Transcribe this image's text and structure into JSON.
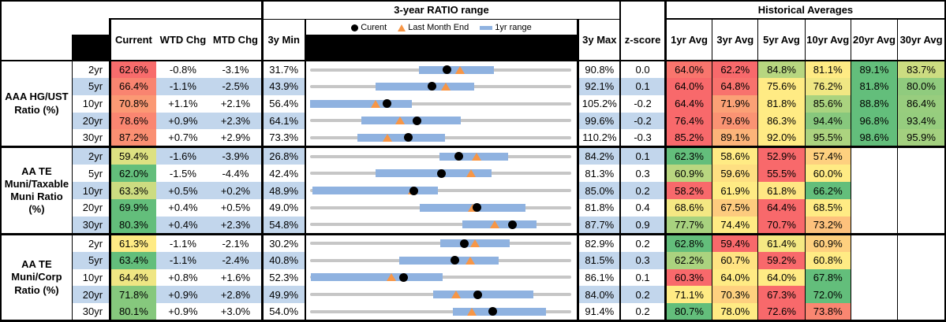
{
  "palette": {
    "scale_min_red": "#F8696B",
    "scale_mid_yellow": "#FFEB84",
    "scale_max_green": "#63BE7B",
    "stripe_blue": "#C2D6EC",
    "bar_blue": "#8FB2E0",
    "track_gray": "#C6C6C6",
    "marker_black": "#000000",
    "marker_orange": "#F79646"
  },
  "headers": {
    "range_title": "3-year RATIO range",
    "hist_title": "Historical Averages",
    "current": "Current",
    "wtd": "WTD Chg",
    "mtd": "MTD Chg",
    "min3y": "3y Min",
    "max3y": "3y Max",
    "zscore": "z-score",
    "avg": [
      "1yr Avg",
      "3yr Avg",
      "5yr Avg",
      "10yr Avg",
      "20yr Avg",
      "30yr Avg"
    ]
  },
  "legend": {
    "items": [
      {
        "marker": "black-dot",
        "label": "Curent"
      },
      {
        "marker": "orange-triangle",
        "label": "Last Month End"
      },
      {
        "marker": "blue-dash",
        "label": "1yr range"
      }
    ]
  },
  "sections": [
    {
      "label": "AAA HG/UST\nRatio (%)",
      "rows": [
        {
          "tenor": "2yr",
          "current": "62.6%",
          "wtd": "-0.8%",
          "mtd": "-3.1%",
          "min": "31.7%",
          "max": "90.8%",
          "z": "0.0",
          "avgs": [
            "64.0%",
            "62.2%",
            "84.8%",
            "81.1%",
            "89.1%",
            "83.7%"
          ]
        },
        {
          "tenor": "5yr",
          "current": "66.4%",
          "wtd": "-1.1%",
          "mtd": "-2.5%",
          "min": "43.9%",
          "max": "92.1%",
          "z": "0.1",
          "avgs": [
            "64.0%",
            "64.8%",
            "75.6%",
            "76.2%",
            "81.8%",
            "80.0%"
          ]
        },
        {
          "tenor": "10yr",
          "current": "70.8%",
          "wtd": "+1.1%",
          "mtd": "+2.1%",
          "min": "56.4%",
          "max": "105.2%",
          "z": "-0.2",
          "avgs": [
            "64.4%",
            "71.9%",
            "81.8%",
            "85.6%",
            "88.8%",
            "86.4%"
          ]
        },
        {
          "tenor": "20yr",
          "current": "78.6%",
          "wtd": "+0.9%",
          "mtd": "+2.3%",
          "min": "64.1%",
          "max": "99.6%",
          "z": "-0.2",
          "avgs": [
            "76.4%",
            "79.6%",
            "86.3%",
            "94.4%",
            "96.8%",
            "93.4%"
          ]
        },
        {
          "tenor": "30yr",
          "current": "87.2%",
          "wtd": "+0.7%",
          "mtd": "+2.9%",
          "min": "73.3%",
          "max": "110.2%",
          "z": "-0.3",
          "avgs": [
            "85.2%",
            "89.1%",
            "92.0%",
            "95.5%",
            "98.6%",
            "95.9%"
          ]
        }
      ]
    },
    {
      "label": "AA TE\nMuni/Taxable\nMuni Ratio\n(%)",
      "rows": [
        {
          "tenor": "2yr",
          "current": "59.4%",
          "wtd": "-1.6%",
          "mtd": "-3.9%",
          "min": "26.8%",
          "max": "84.2%",
          "z": "0.1",
          "avgs": [
            "62.3%",
            "58.6%",
            "52.9%",
            "57.4%",
            "",
            ""
          ]
        },
        {
          "tenor": "5yr",
          "current": "62.0%",
          "wtd": "-1.5%",
          "mtd": "-4.4%",
          "min": "42.4%",
          "max": "81.3%",
          "z": "0.3",
          "avgs": [
            "60.9%",
            "59.6%",
            "55.5%",
            "60.0%",
            "",
            ""
          ]
        },
        {
          "tenor": "10yr",
          "current": "63.3%",
          "wtd": "+0.5%",
          "mtd": "+0.2%",
          "min": "48.9%",
          "max": "85.0%",
          "z": "0.2",
          "avgs": [
            "58.2%",
            "61.9%",
            "61.8%",
            "66.2%",
            "",
            ""
          ]
        },
        {
          "tenor": "20yr",
          "current": "69.9%",
          "wtd": "+0.4%",
          "mtd": "+0.5%",
          "min": "49.0%",
          "max": "81.8%",
          "z": "0.4",
          "avgs": [
            "68.6%",
            "67.5%",
            "64.4%",
            "68.5%",
            "",
            ""
          ]
        },
        {
          "tenor": "30yr",
          "current": "80.3%",
          "wtd": "+0.4%",
          "mtd": "+2.3%",
          "min": "54.8%",
          "max": "87.7%",
          "z": "0.9",
          "avgs": [
            "77.7%",
            "74.4%",
            "70.7%",
            "73.2%",
            "",
            ""
          ]
        }
      ]
    },
    {
      "label": "AA TE\nMuni/Corp\nRatio (%)",
      "rows": [
        {
          "tenor": "2yr",
          "current": "61.3%",
          "wtd": "-1.1%",
          "mtd": "-2.1%",
          "min": "30.2%",
          "max": "82.9%",
          "z": "0.2",
          "avgs": [
            "62.8%",
            "59.4%",
            "61.4%",
            "60.9%",
            "",
            ""
          ]
        },
        {
          "tenor": "5yr",
          "current": "63.4%",
          "wtd": "-1.1%",
          "mtd": "-2.4%",
          "min": "40.8%",
          "max": "81.5%",
          "z": "0.3",
          "avgs": [
            "62.2%",
            "60.7%",
            "59.2%",
            "60.8%",
            "",
            ""
          ]
        },
        {
          "tenor": "10yr",
          "current": "64.4%",
          "wtd": "+0.8%",
          "mtd": "+1.6%",
          "min": "52.3%",
          "max": "86.1%",
          "z": "0.1",
          "avgs": [
            "60.3%",
            "64.0%",
            "64.0%",
            "67.8%",
            "",
            ""
          ]
        },
        {
          "tenor": "20yr",
          "current": "71.8%",
          "wtd": "+0.9%",
          "mtd": "+2.8%",
          "min": "49.9%",
          "max": "84.0%",
          "z": "0.2",
          "avgs": [
            "71.1%",
            "70.3%",
            "67.3%",
            "72.0%",
            "",
            ""
          ]
        },
        {
          "tenor": "30yr",
          "current": "80.1%",
          "wtd": "+0.9%",
          "mtd": "+3.0%",
          "min": "54.0%",
          "max": "91.4%",
          "z": "0.2",
          "avgs": [
            "80.7%",
            "78.0%",
            "72.6%",
            "73.8%",
            "",
            ""
          ]
        }
      ]
    }
  ],
  "chart_data": {
    "type": "range_dot_plot",
    "title": "3-year RATIO range",
    "x_scale": "each row spans its own 3y Min to 3y Max",
    "legend": [
      "Curent (black dot)",
      "Last Month End (orange triangle)",
      "1yr range (blue bar)"
    ],
    "rows": [
      {
        "group": "AAA HG/UST",
        "tenor": "2yr",
        "min_3y": 31.7,
        "max_3y": 90.8,
        "current": 62.6,
        "last_month_end": 65.7,
        "range_1yr": [
          56.3,
          73.2
        ]
      },
      {
        "group": "AAA HG/UST",
        "tenor": "5yr",
        "min_3y": 43.9,
        "max_3y": 92.1,
        "current": 66.4,
        "last_month_end": 68.9,
        "range_1yr": [
          56.0,
          74.2
        ]
      },
      {
        "group": "AAA HG/UST",
        "tenor": "10yr",
        "min_3y": 56.4,
        "max_3y": 105.2,
        "current": 70.8,
        "last_month_end": 68.7,
        "range_1yr": [
          56.4,
          75.5
        ]
      },
      {
        "group": "AAA HG/UST",
        "tenor": "20yr",
        "min_3y": 64.1,
        "max_3y": 99.6,
        "current": 78.6,
        "last_month_end": 76.3,
        "range_1yr": [
          71.1,
          84.6
        ]
      },
      {
        "group": "AAA HG/UST",
        "tenor": "30yr",
        "min_3y": 73.3,
        "max_3y": 110.2,
        "current": 87.2,
        "last_month_end": 84.3,
        "range_1yr": [
          80.0,
          92.4
        ]
      },
      {
        "group": "AA TE Muni/Taxable Muni",
        "tenor": "2yr",
        "min_3y": 26.8,
        "max_3y": 84.2,
        "current": 59.4,
        "last_month_end": 63.3,
        "range_1yr": [
          55.3,
          70.3
        ]
      },
      {
        "group": "AA TE Muni/Taxable Muni",
        "tenor": "5yr",
        "min_3y": 42.4,
        "max_3y": 81.3,
        "current": 62.0,
        "last_month_end": 66.4,
        "range_1yr": [
          52.2,
          69.4
        ]
      },
      {
        "group": "AA TE Muni/Taxable Muni",
        "tenor": "10yr",
        "min_3y": 48.9,
        "max_3y": 85.0,
        "current": 63.3,
        "last_month_end": 63.1,
        "range_1yr": [
          49.3,
          66.6
        ]
      },
      {
        "group": "AA TE Muni/Taxable Muni",
        "tenor": "20yr",
        "min_3y": 49.0,
        "max_3y": 81.8,
        "current": 69.9,
        "last_month_end": 69.4,
        "range_1yr": [
          62.8,
          76.0
        ]
      },
      {
        "group": "AA TE Muni/Taxable Muni",
        "tenor": "30yr",
        "min_3y": 54.8,
        "max_3y": 87.7,
        "current": 80.3,
        "last_month_end": 78.0,
        "range_1yr": [
          74.0,
          83.3
        ]
      },
      {
        "group": "AA TE Muni/Corp",
        "tenor": "2yr",
        "min_3y": 30.2,
        "max_3y": 82.9,
        "current": 61.3,
        "last_month_end": 63.4,
        "range_1yr": [
          56.4,
          70.4
        ]
      },
      {
        "group": "AA TE Muni/Corp",
        "tenor": "5yr",
        "min_3y": 40.8,
        "max_3y": 81.5,
        "current": 63.4,
        "last_month_end": 65.8,
        "range_1yr": [
          54.7,
          70.2
        ]
      },
      {
        "group": "AA TE Muni/Corp",
        "tenor": "10yr",
        "min_3y": 52.3,
        "max_3y": 86.1,
        "current": 64.4,
        "last_month_end": 62.8,
        "range_1yr": [
          52.5,
          69.5
        ]
      },
      {
        "group": "AA TE Muni/Corp",
        "tenor": "20yr",
        "min_3y": 49.9,
        "max_3y": 84.0,
        "current": 71.8,
        "last_month_end": 69.0,
        "range_1yr": [
          66.0,
          79.0
        ]
      },
      {
        "group": "AA TE Muni/Corp",
        "tenor": "30yr",
        "min_3y": 54.0,
        "max_3y": 91.4,
        "current": 80.1,
        "last_month_end": 77.1,
        "range_1yr": [
          74.5,
          87.8
        ]
      }
    ]
  }
}
